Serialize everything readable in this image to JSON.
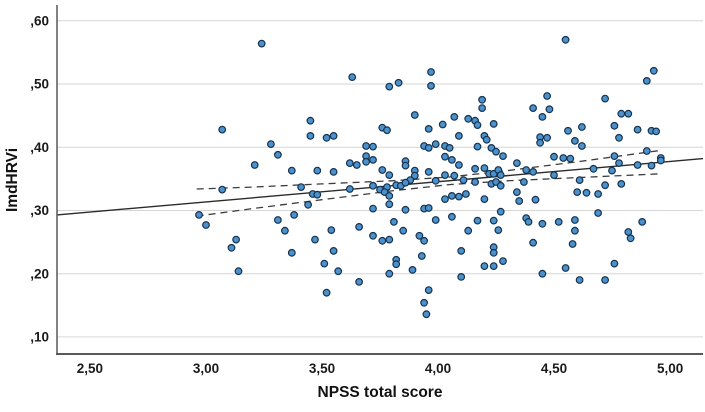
{
  "chart_data": {
    "type": "scatter",
    "title": "",
    "xlabel": "NPSS total score",
    "ylabel": "ImdHRVi",
    "xlim": [
      2.358,
      5.142
    ],
    "ylim": [
      0.073,
      0.625
    ],
    "grid": "horizontal-only",
    "legend": "none",
    "x_ticks": [
      {
        "v": 2.5,
        "label": "2,50"
      },
      {
        "v": 3.0,
        "label": "3,00"
      },
      {
        "v": 3.5,
        "label": "3,50"
      },
      {
        "v": 4.0,
        "label": "4,00"
      },
      {
        "v": 4.5,
        "label": "4,50"
      },
      {
        "v": 5.0,
        "label": "5,00"
      }
    ],
    "y_ticks": [
      {
        "v": 0.1,
        "label": ",10"
      },
      {
        "v": 0.2,
        "label": ",20"
      },
      {
        "v": 0.3,
        "label": ",30"
      },
      {
        "v": 0.4,
        "label": ",40"
      },
      {
        "v": 0.5,
        "label": ",50"
      },
      {
        "v": 0.6,
        "label": ",60"
      }
    ],
    "fit_line": {
      "style": "solid",
      "points": [
        [
          2.358,
          0.293
        ],
        [
          5.142,
          0.382
        ]
      ]
    },
    "ci_upper": {
      "style": "dashed",
      "points": [
        [
          2.96,
          0.334
        ],
        [
          3.2,
          0.337
        ],
        [
          3.5,
          0.342
        ],
        [
          3.8,
          0.347
        ],
        [
          4.05,
          0.353
        ],
        [
          4.3,
          0.363
        ],
        [
          4.6,
          0.377
        ],
        [
          4.96,
          0.395
        ]
      ]
    },
    "ci_lower": {
      "style": "dashed",
      "points": [
        [
          2.96,
          0.291
        ],
        [
          3.2,
          0.303
        ],
        [
          3.5,
          0.317
        ],
        [
          3.8,
          0.331
        ],
        [
          4.05,
          0.341
        ],
        [
          4.3,
          0.347
        ],
        [
          4.6,
          0.352
        ],
        [
          4.96,
          0.358
        ]
      ]
    },
    "points": [
      [
        3.24,
        0.564
      ],
      [
        3.07,
        0.428
      ],
      [
        3.28,
        0.405
      ],
      [
        3.31,
        0.388
      ],
      [
        3.21,
        0.372
      ],
      [
        3.37,
        0.363
      ],
      [
        3.07,
        0.333
      ],
      [
        2.97,
        0.293
      ],
      [
        3.0,
        0.277
      ],
      [
        3.31,
        0.285
      ],
      [
        3.34,
        0.268
      ],
      [
        3.38,
        0.293
      ],
      [
        3.13,
        0.254
      ],
      [
        3.11,
        0.241
      ],
      [
        3.37,
        0.233
      ],
      [
        3.14,
        0.204
      ],
      [
        3.63,
        0.511
      ],
      [
        3.79,
        0.496
      ],
      [
        3.83,
        0.502
      ],
      [
        3.97,
        0.519
      ],
      [
        3.97,
        0.497
      ],
      [
        3.45,
        0.442
      ],
      [
        3.9,
        0.451
      ],
      [
        3.76,
        0.431
      ],
      [
        3.78,
        0.427
      ],
      [
        3.96,
        0.429
      ],
      [
        3.45,
        0.418
      ],
      [
        3.52,
        0.415
      ],
      [
        3.55,
        0.418
      ],
      [
        3.69,
        0.402
      ],
      [
        3.72,
        0.401
      ],
      [
        3.94,
        0.402
      ],
      [
        3.96,
        0.399
      ],
      [
        3.99,
        0.405
      ],
      [
        3.62,
        0.375
      ],
      [
        3.65,
        0.372
      ],
      [
        3.69,
        0.386
      ],
      [
        3.69,
        0.377
      ],
      [
        3.72,
        0.38
      ],
      [
        3.86,
        0.378
      ],
      [
        3.86,
        0.371
      ],
      [
        3.48,
        0.363
      ],
      [
        3.55,
        0.361
      ],
      [
        3.76,
        0.364
      ],
      [
        3.79,
        0.356
      ],
      [
        3.9,
        0.363
      ],
      [
        3.9,
        0.355
      ],
      [
        3.88,
        0.348
      ],
      [
        3.96,
        0.361
      ],
      [
        3.99,
        0.347
      ],
      [
        3.62,
        0.334
      ],
      [
        3.72,
        0.339
      ],
      [
        3.75,
        0.333
      ],
      [
        3.78,
        0.337
      ],
      [
        3.77,
        0.329
      ],
      [
        3.79,
        0.323
      ],
      [
        3.82,
        0.34
      ],
      [
        3.84,
        0.339
      ],
      [
        3.86,
        0.344
      ],
      [
        3.46,
        0.326
      ],
      [
        3.48,
        0.325
      ],
      [
        3.41,
        0.337
      ],
      [
        3.44,
        0.309
      ],
      [
        3.79,
        0.31
      ],
      [
        3.86,
        0.301
      ],
      [
        3.94,
        0.303
      ],
      [
        3.96,
        0.304
      ],
      [
        3.72,
        0.303
      ],
      [
        3.54,
        0.269
      ],
      [
        3.66,
        0.274
      ],
      [
        3.85,
        0.268
      ],
      [
        3.81,
        0.282
      ],
      [
        3.99,
        0.285
      ],
      [
        3.72,
        0.26
      ],
      [
        3.92,
        0.26
      ],
      [
        3.47,
        0.254
      ],
      [
        3.55,
        0.236
      ],
      [
        3.51,
        0.216
      ],
      [
        3.57,
        0.204
      ],
      [
        3.66,
        0.187
      ],
      [
        3.52,
        0.17
      ],
      [
        3.76,
        0.252
      ],
      [
        3.79,
        0.254
      ],
      [
        3.82,
        0.222
      ],
      [
        3.82,
        0.215
      ],
      [
        3.79,
        0.2
      ],
      [
        3.89,
        0.206
      ],
      [
        3.94,
        0.252
      ],
      [
        3.93,
        0.228
      ],
      [
        3.96,
        0.174
      ],
      [
        3.94,
        0.154
      ],
      [
        3.95,
        0.136
      ],
      [
        4.55,
        0.57
      ],
      [
        4.19,
        0.475
      ],
      [
        4.19,
        0.462
      ],
      [
        4.07,
        0.448
      ],
      [
        4.02,
        0.436
      ],
      [
        4.13,
        0.445
      ],
      [
        4.16,
        0.442
      ],
      [
        4.17,
        0.435
      ],
      [
        4.24,
        0.437
      ],
      [
        4.47,
        0.481
      ],
      [
        4.41,
        0.462
      ],
      [
        4.48,
        0.46
      ],
      [
        4.45,
        0.448
      ],
      [
        4.56,
        0.426
      ],
      [
        4.09,
        0.418
      ],
      [
        4.2,
        0.418
      ],
      [
        4.21,
        0.412
      ],
      [
        4.44,
        0.416
      ],
      [
        4.47,
        0.415
      ],
      [
        4.44,
        0.407
      ],
      [
        4.59,
        0.41
      ],
      [
        4.03,
        0.402
      ],
      [
        4.05,
        0.399
      ],
      [
        4.17,
        0.401
      ],
      [
        4.23,
        0.399
      ],
      [
        4.25,
        0.393
      ],
      [
        4.28,
        0.386
      ],
      [
        4.34,
        0.375
      ],
      [
        4.5,
        0.385
      ],
      [
        4.54,
        0.383
      ],
      [
        4.57,
        0.382
      ],
      [
        4.03,
        0.385
      ],
      [
        4.06,
        0.38
      ],
      [
        4.09,
        0.372
      ],
      [
        4.03,
        0.356
      ],
      [
        4.07,
        0.355
      ],
      [
        4.16,
        0.366
      ],
      [
        4.2,
        0.367
      ],
      [
        4.22,
        0.358
      ],
      [
        4.24,
        0.358
      ],
      [
        4.26,
        0.364
      ],
      [
        4.27,
        0.356
      ],
      [
        4.11,
        0.348
      ],
      [
        4.16,
        0.345
      ],
      [
        4.23,
        0.342
      ],
      [
        4.25,
        0.345
      ],
      [
        4.27,
        0.339
      ],
      [
        4.38,
        0.364
      ],
      [
        4.41,
        0.361
      ],
      [
        4.5,
        0.356
      ],
      [
        4.37,
        0.345
      ],
      [
        4.12,
        0.326
      ],
      [
        4.06,
        0.323
      ],
      [
        4.09,
        0.322
      ],
      [
        4.03,
        0.318
      ],
      [
        4.2,
        0.318
      ],
      [
        4.34,
        0.329
      ],
      [
        4.35,
        0.315
      ],
      [
        4.42,
        0.317
      ],
      [
        4.6,
        0.329
      ],
      [
        4.06,
        0.29
      ],
      [
        4.17,
        0.284
      ],
      [
        4.24,
        0.284
      ],
      [
        4.27,
        0.298
      ],
      [
        4.26,
        0.269
      ],
      [
        4.38,
        0.288
      ],
      [
        4.39,
        0.282
      ],
      [
        4.45,
        0.279
      ],
      [
        4.52,
        0.282
      ],
      [
        4.59,
        0.285
      ],
      [
        4.13,
        0.268
      ],
      [
        4.59,
        0.268
      ],
      [
        4.1,
        0.236
      ],
      [
        4.24,
        0.242
      ],
      [
        4.24,
        0.233
      ],
      [
        4.28,
        0.22
      ],
      [
        4.2,
        0.212
      ],
      [
        4.24,
        0.212
      ],
      [
        4.1,
        0.195
      ],
      [
        4.41,
        0.249
      ],
      [
        4.45,
        0.2
      ],
      [
        4.55,
        0.209
      ],
      [
        4.61,
        0.19
      ],
      [
        4.58,
        0.247
      ],
      [
        4.93,
        0.521
      ],
      [
        4.9,
        0.505
      ],
      [
        4.72,
        0.477
      ],
      [
        4.79,
        0.453
      ],
      [
        4.82,
        0.453
      ],
      [
        4.76,
        0.434
      ],
      [
        4.62,
        0.432
      ],
      [
        4.86,
        0.428
      ],
      [
        4.92,
        0.426
      ],
      [
        4.94,
        0.425
      ],
      [
        4.78,
        0.415
      ],
      [
        4.62,
        0.402
      ],
      [
        4.76,
        0.386
      ],
      [
        4.9,
        0.394
      ],
      [
        4.96,
        0.383
      ],
      [
        4.67,
        0.366
      ],
      [
        4.75,
        0.363
      ],
      [
        4.78,
        0.375
      ],
      [
        4.86,
        0.372
      ],
      [
        4.92,
        0.371
      ],
      [
        4.61,
        0.348
      ],
      [
        4.72,
        0.34
      ],
      [
        4.79,
        0.342
      ],
      [
        4.64,
        0.328
      ],
      [
        4.69,
        0.326
      ],
      [
        4.69,
        0.296
      ],
      [
        4.88,
        0.282
      ],
      [
        4.82,
        0.266
      ],
      [
        4.96,
        0.379
      ],
      [
        4.76,
        0.216
      ],
      [
        4.72,
        0.19
      ],
      [
        4.83,
        0.256
      ]
    ],
    "colors": {
      "point_fill": "#4b92cc",
      "point_stroke": "#16324f",
      "grid": "#d6d6d6",
      "axis": "#595959",
      "fit_line": "#2b2b2b",
      "ci_line": "#3d3d3d",
      "label": "#1a1a1a",
      "background": "#ffffff"
    }
  }
}
